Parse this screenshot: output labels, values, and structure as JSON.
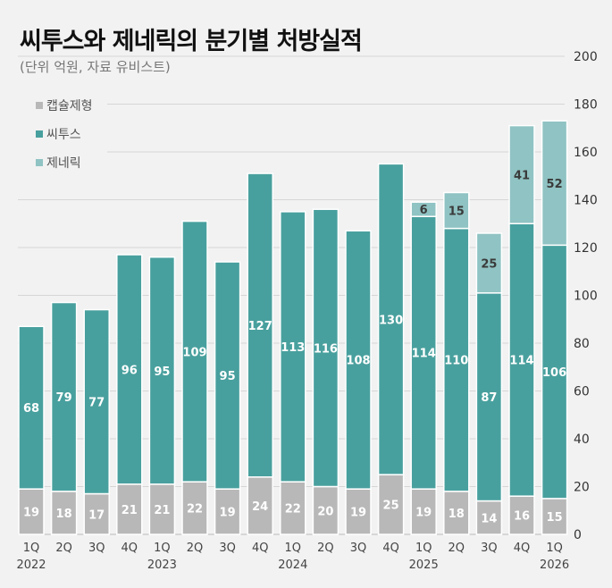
{
  "chart_data": {
    "type": "bar",
    "stacked": true,
    "title": "씨투스와 제네릭의 분기별 처방실적",
    "subtitle": "(단위 억원, 자료 유비스트)",
    "categories": [
      "1Q",
      "2Q",
      "3Q",
      "4Q",
      "1Q",
      "2Q",
      "3Q",
      "4Q",
      "1Q",
      "2Q",
      "3Q",
      "4Q",
      "1Q",
      "2Q",
      "3Q",
      "4Q",
      "1Q"
    ],
    "year_labels": [
      "2022",
      "",
      "",
      "",
      "2023",
      "",
      "",
      "",
      "2024",
      "",
      "",
      "",
      "2025",
      "",
      "",
      "",
      "2026"
    ],
    "series": [
      {
        "name": "캡슐제형",
        "color": "#b8b8b8",
        "label_color": "#ffffff",
        "values": [
          19,
          18,
          17,
          21,
          21,
          22,
          19,
          24,
          22,
          20,
          19,
          25,
          19,
          18,
          14,
          16,
          15
        ]
      },
      {
        "name": "씨투스",
        "color": "#48a09e",
        "label_color": "#ffffff",
        "values": [
          68,
          79,
          77,
          96,
          95,
          109,
          95,
          127,
          113,
          116,
          108,
          130,
          114,
          110,
          87,
          114,
          106
        ]
      },
      {
        "name": "제네릭",
        "color": "#90c3c3",
        "label_color": "#3a3a3a",
        "values": [
          0,
          0,
          0,
          0,
          0,
          0,
          0,
          0,
          0,
          0,
          0,
          0,
          6,
          15,
          25,
          41,
          52
        ]
      }
    ],
    "ylim": [
      0,
      200
    ],
    "yticks": [
      0,
      20,
      40,
      60,
      80,
      100,
      120,
      140,
      160,
      180,
      200
    ],
    "y_axis_position": "right",
    "grid": true,
    "legend_position": "top-left"
  }
}
